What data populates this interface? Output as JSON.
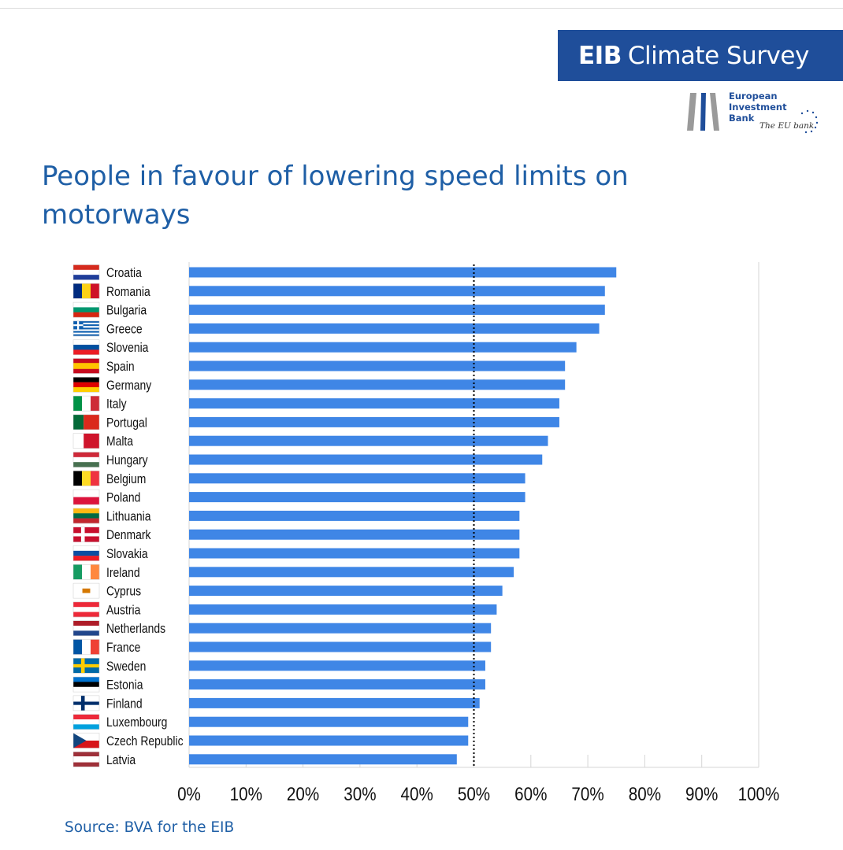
{
  "header": {
    "banner_bold": "EIB",
    "banner_rest": "Climate Survey",
    "logo_line1": "European",
    "logo_line2": "Investment",
    "logo_line3": "Bank",
    "logo_tagline": "The EU bank"
  },
  "colors": {
    "bar": "#3f86e6",
    "brand": "#1f4e9a",
    "title": "#1f5fa6"
  },
  "source": "Source: BVA for the EIB",
  "chart_data": {
    "type": "bar",
    "orientation": "horizontal",
    "title": "People in favour of lowering speed limits on motorways",
    "categories": [
      "Croatia",
      "Romania",
      "Bulgaria",
      "Greece",
      "Slovenia",
      "Spain",
      "Germany",
      "Italy",
      "Portugal",
      "Malta",
      "Hungary",
      "Belgium",
      "Poland",
      "Lithuania",
      "Denmark",
      "Slovakia",
      "Ireland",
      "Cyprus",
      "Austria",
      "Netherlands",
      "France",
      "Sweden",
      "Estonia",
      "Finland",
      "Luxembourg",
      "Czech Republic",
      "Latvia"
    ],
    "values": [
      75,
      73,
      73,
      72,
      68,
      66,
      66,
      65,
      65,
      63,
      62,
      59,
      59,
      58,
      58,
      58,
      57,
      55,
      54,
      53,
      53,
      52,
      52,
      51,
      49,
      49,
      47
    ],
    "reference_line": 50,
    "xlim": [
      0,
      100
    ],
    "x_ticks": [
      "0%",
      "10%",
      "20%",
      "30%",
      "40%",
      "50%",
      "60%",
      "70%",
      "80%",
      "90%",
      "100%"
    ],
    "flags": [
      "croatia-flag",
      "romania-flag",
      "bulgaria-flag",
      "greece-flag",
      "slovenia-flag",
      "spain-flag",
      "germany-flag",
      "italy-flag",
      "portugal-flag",
      "malta-flag",
      "hungary-flag",
      "belgium-flag",
      "poland-flag",
      "lithuania-flag",
      "denmark-flag",
      "slovakia-flag",
      "ireland-flag",
      "cyprus-flag",
      "austria-flag",
      "netherlands-flag",
      "france-flag",
      "sweden-flag",
      "estonia-flag",
      "finland-flag",
      "luxembourg-flag",
      "czech-republic-flag",
      "latvia-flag"
    ],
    "grid": "vertical"
  }
}
